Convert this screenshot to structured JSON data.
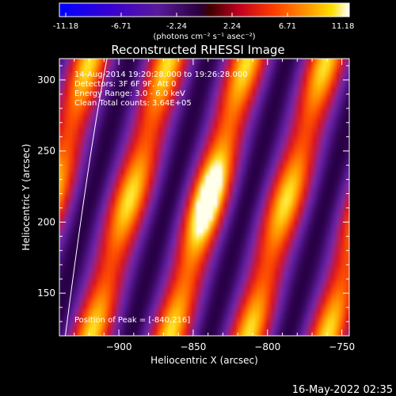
{
  "colorbar": {
    "ticks": [
      "-11.18",
      "-6.71",
      "-2.24",
      "2.24",
      "6.71",
      "11.18"
    ],
    "unit_label": "(photons cm⁻² s⁻¹ asec⁻²)",
    "range": [
      -11.18,
      11.18
    ]
  },
  "chart_data": {
    "type": "heatmap",
    "title": "Reconstructed RHESSI Image",
    "xlabel": "Heliocentric X (arcsec)",
    "ylabel": "Heliocentric Y (arcsec)",
    "xlim": [
      -940,
      -745
    ],
    "ylim": [
      120,
      315
    ],
    "x_ticks": [
      -900,
      -850,
      -800,
      -750
    ],
    "x_tick_labels": [
      "−900",
      "−850",
      "−800",
      "−750"
    ],
    "y_ticks": [
      150,
      200,
      250,
      300
    ],
    "y_tick_labels": [
      "150",
      "200",
      "250",
      "300"
    ],
    "annotations": [
      "14-Aug-2014 19:20:28.000 to 19:26:28.000",
      "Detectors: 3F 6F 9F, Att 0",
      "Energy Range: 3.0 - 6.0 keV",
      "Clean    Total counts: 3.64E+05"
    ],
    "peak_label": "Position of Peak = [-840,216]",
    "peak": [
      -840,
      216
    ],
    "fringe_period_x": 53,
    "fringe_tilt_dxdy": 0.27,
    "limb_curve": [
      [
        -936,
        120
      ],
      [
        -920,
        250
      ],
      [
        -908,
        315
      ]
    ],
    "colormap": "hot-bipolar",
    "grid": false
  },
  "timestamp": "16-May-2022 02:35"
}
